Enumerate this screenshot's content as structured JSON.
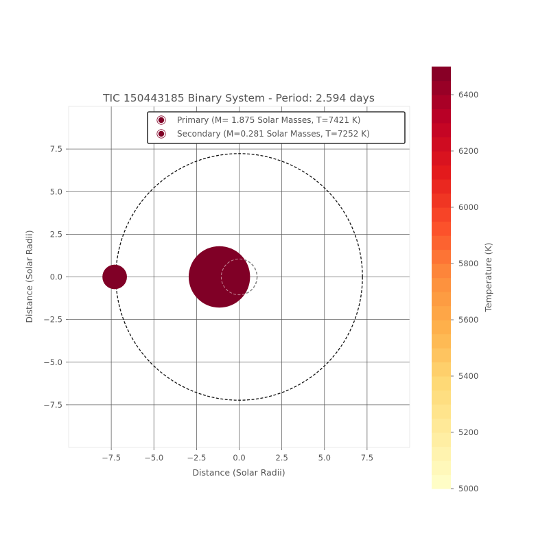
{
  "chart_data": {
    "type": "scatter",
    "title": "TIC 150443185 Binary System - Period: 2.594 days",
    "xlabel": "Distance (Solar Radii)",
    "ylabel": "Distance (Solar Radii)",
    "xlim": [
      -10,
      10
    ],
    "ylim": [
      -10,
      10
    ],
    "xticks": [
      -7.5,
      -5.0,
      -2.5,
      0.0,
      2.5,
      5.0,
      7.5
    ],
    "yticks": [
      -7.5,
      -5.0,
      -2.5,
      0.0,
      2.5,
      5.0,
      7.5
    ],
    "xtick_labels": [
      "−7.5",
      "−5.0",
      "−2.5",
      "0.0",
      "2.5",
      "5.0",
      "7.5"
    ],
    "ytick_labels": [
      "−7.5",
      "−5.0",
      "−2.5",
      "0.0",
      "2.5",
      "5.0",
      "7.5"
    ],
    "grid": true,
    "legend_position": "upper right",
    "series": [
      {
        "name": "Primary (M= 1.875  Solar Masses, T=7421 K)",
        "x": -1.16,
        "y": 0.0,
        "radius": 1.8,
        "orbit_radius": 1.05,
        "color": "#800026"
      },
      {
        "name": "Secondary (M=0.281 Solar Masses, T=7252 K)",
        "x": -7.3,
        "y": 0.0,
        "radius": 0.72,
        "orbit_radius": 7.23,
        "color": "#800026"
      }
    ],
    "colorbar": {
      "label": "Temperature (K)",
      "min": 5000,
      "max": 6500,
      "ticks": [
        5000,
        5200,
        5400,
        5600,
        5800,
        6000,
        6200,
        6400
      ],
      "tick_labels": [
        "5000",
        "5200",
        "5400",
        "5600",
        "5800",
        "6000",
        "6200",
        "6400"
      ],
      "colors": [
        "#ffffcc",
        "#ffeda0",
        "#fed976",
        "#feb24c",
        "#fd8d3c",
        "#fc4e2a",
        "#e31a1c",
        "#bd0026",
        "#800026"
      ]
    }
  }
}
